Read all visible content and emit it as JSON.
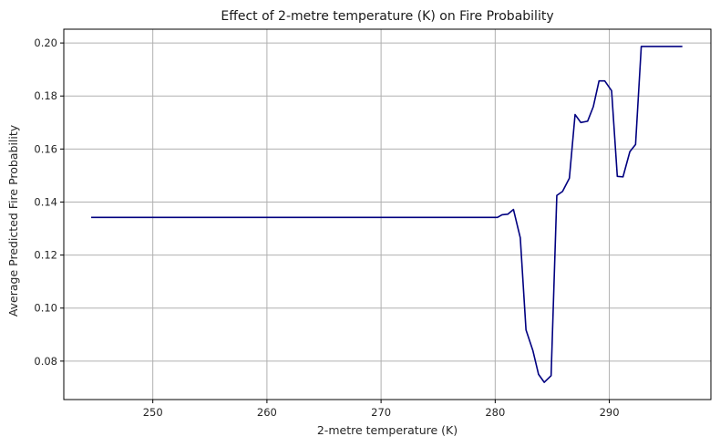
{
  "chart_data": {
    "type": "line",
    "title": "Effect of 2-metre temperature (K) on Fire Probability",
    "xlabel": "2-metre temperature (K)",
    "ylabel": "Average Predicted Fire Probability",
    "xlim": [
      242.2,
      298.9
    ],
    "ylim": [
      0.0655,
      0.2052
    ],
    "xticks": [
      250,
      260,
      270,
      280,
      290
    ],
    "xtick_labels": [
      "250",
      "260",
      "270",
      "280",
      "290"
    ],
    "yticks": [
      0.08,
      0.1,
      0.12,
      0.14,
      0.16,
      0.18,
      0.2
    ],
    "ytick_labels": [
      "0.08",
      "0.10",
      "0.12",
      "0.14",
      "0.16",
      "0.18",
      "0.20"
    ],
    "grid": true,
    "legend": false,
    "line_color": "#000080",
    "series": [
      {
        "x": [
          244.6,
          280.2,
          280.6,
          281.1,
          281.6,
          282.2,
          282.7,
          283.3,
          283.8,
          284.3,
          284.9,
          285.4,
          285.9,
          286.5,
          287.0,
          287.5,
          288.1,
          288.6,
          289.1,
          289.6,
          290.2,
          290.7,
          291.2,
          291.8,
          292.3,
          292.8,
          293.5,
          296.4
        ],
        "y": [
          0.1342,
          0.1342,
          0.1352,
          0.1354,
          0.1372,
          0.1265,
          0.0918,
          0.084,
          0.075,
          0.072,
          0.0745,
          0.1425,
          0.144,
          0.149,
          0.173,
          0.17,
          0.1705,
          0.176,
          0.1857,
          0.1857,
          0.182,
          0.1497,
          0.1495,
          0.159,
          0.1617,
          0.1987,
          0.1987,
          0.1987
        ]
      }
    ]
  }
}
